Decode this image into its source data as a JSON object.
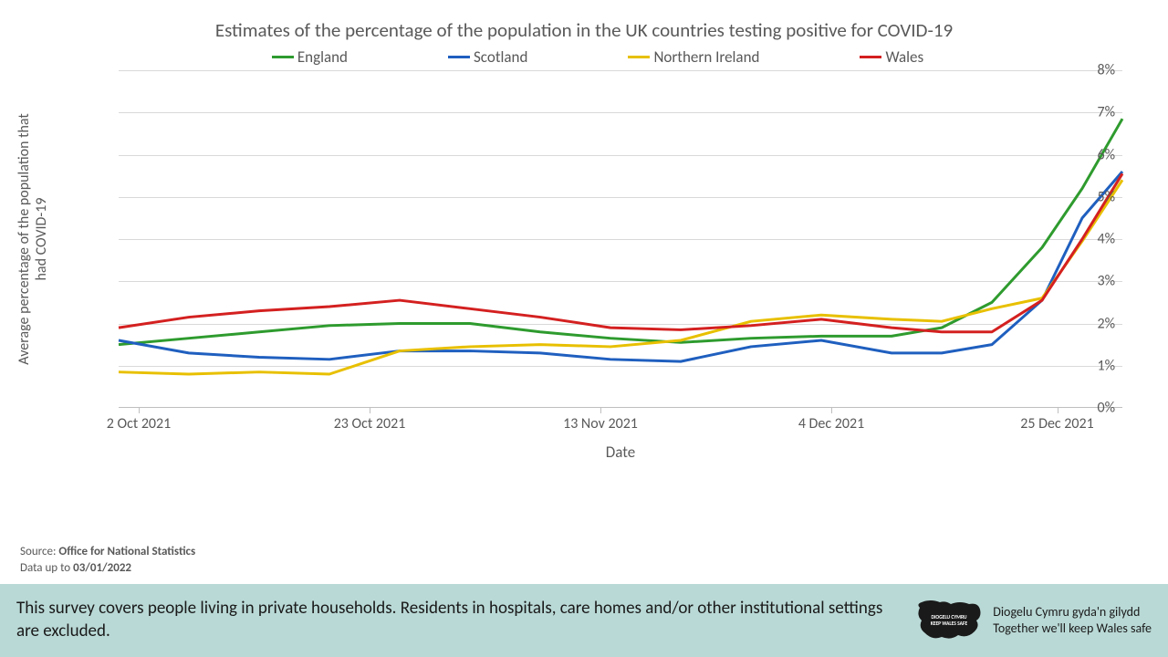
{
  "chart": {
    "type": "line",
    "title": "Estimates of the percentage of the population in the UK countries testing positive for COVID-19",
    "ylabel": "Average percentage of the population that\nhad COVID-19",
    "xlabel": "Date",
    "title_fontsize": 21,
    "label_fontsize": 16,
    "background_color": "#ffffff",
    "grid_color": "#d9d9d9",
    "axis_color": "#bfbfbf",
    "text_color": "#595959",
    "ylim": [
      0,
      8
    ],
    "ytick_step": 1,
    "ytick_suffix": "%",
    "x_ticks": [
      {
        "label": "2 Oct 2021",
        "pos": 0.02
      },
      {
        "label": "23 Oct 2021",
        "pos": 0.25
      },
      {
        "label": "13 Nov 2021",
        "pos": 0.48
      },
      {
        "label": "4 Dec 2021",
        "pos": 0.71
      },
      {
        "label": "25 Dec 2021",
        "pos": 0.935
      }
    ],
    "line_width": 3,
    "series": [
      {
        "name": "England",
        "color": "#2e9b2e",
        "x": [
          0.0,
          0.07,
          0.14,
          0.21,
          0.28,
          0.35,
          0.42,
          0.49,
          0.56,
          0.63,
          0.7,
          0.77,
          0.82,
          0.87,
          0.92,
          0.96,
          1.0
        ],
        "y": [
          1.5,
          1.65,
          1.8,
          1.95,
          2.0,
          2.0,
          1.8,
          1.65,
          1.55,
          1.65,
          1.7,
          1.7,
          1.9,
          2.5,
          3.8,
          5.2,
          6.85
        ]
      },
      {
        "name": "Scotland",
        "color": "#1f5fbf",
        "x": [
          0.0,
          0.07,
          0.14,
          0.21,
          0.28,
          0.35,
          0.42,
          0.49,
          0.56,
          0.63,
          0.7,
          0.77,
          0.82,
          0.87,
          0.92,
          0.96,
          1.0
        ],
        "y": [
          1.6,
          1.3,
          1.2,
          1.15,
          1.35,
          1.35,
          1.3,
          1.15,
          1.1,
          1.45,
          1.6,
          1.3,
          1.3,
          1.5,
          2.55,
          4.5,
          5.6
        ]
      },
      {
        "name": "Northern Ireland",
        "color": "#e8c000",
        "x": [
          0.0,
          0.07,
          0.14,
          0.21,
          0.28,
          0.35,
          0.42,
          0.49,
          0.56,
          0.63,
          0.7,
          0.77,
          0.82,
          0.87,
          0.92,
          0.96,
          1.0
        ],
        "y": [
          0.85,
          0.8,
          0.85,
          0.8,
          1.35,
          1.45,
          1.5,
          1.45,
          1.6,
          2.05,
          2.2,
          2.1,
          2.05,
          2.35,
          2.6,
          3.95,
          5.4
        ]
      },
      {
        "name": "Wales",
        "color": "#d42020",
        "x": [
          0.0,
          0.07,
          0.14,
          0.21,
          0.28,
          0.35,
          0.42,
          0.49,
          0.56,
          0.63,
          0.7,
          0.77,
          0.82,
          0.87,
          0.92,
          0.96,
          1.0
        ],
        "y": [
          1.9,
          2.15,
          2.3,
          2.4,
          2.55,
          2.35,
          2.15,
          1.9,
          1.85,
          1.95,
          2.1,
          1.9,
          1.8,
          1.8,
          2.55,
          4.0,
          5.55
        ]
      }
    ]
  },
  "source": {
    "label": "Source:",
    "org": "Office for National Statistics",
    "data_label": "Data up to",
    "data_date": "03/01/2022"
  },
  "footer": {
    "text": "This survey covers people living in private households. Residents in hospitals, care homes and/or other institutional settings are excluded.",
    "background_color": "#b9d9d6",
    "logo_top": "DIOGELU CYMRU",
    "logo_bottom": "KEEP WALES SAFE",
    "slogan_cy": "Diogelu Cymru gyda'n gilydd",
    "slogan_en": "Together we'll keep Wales safe"
  }
}
